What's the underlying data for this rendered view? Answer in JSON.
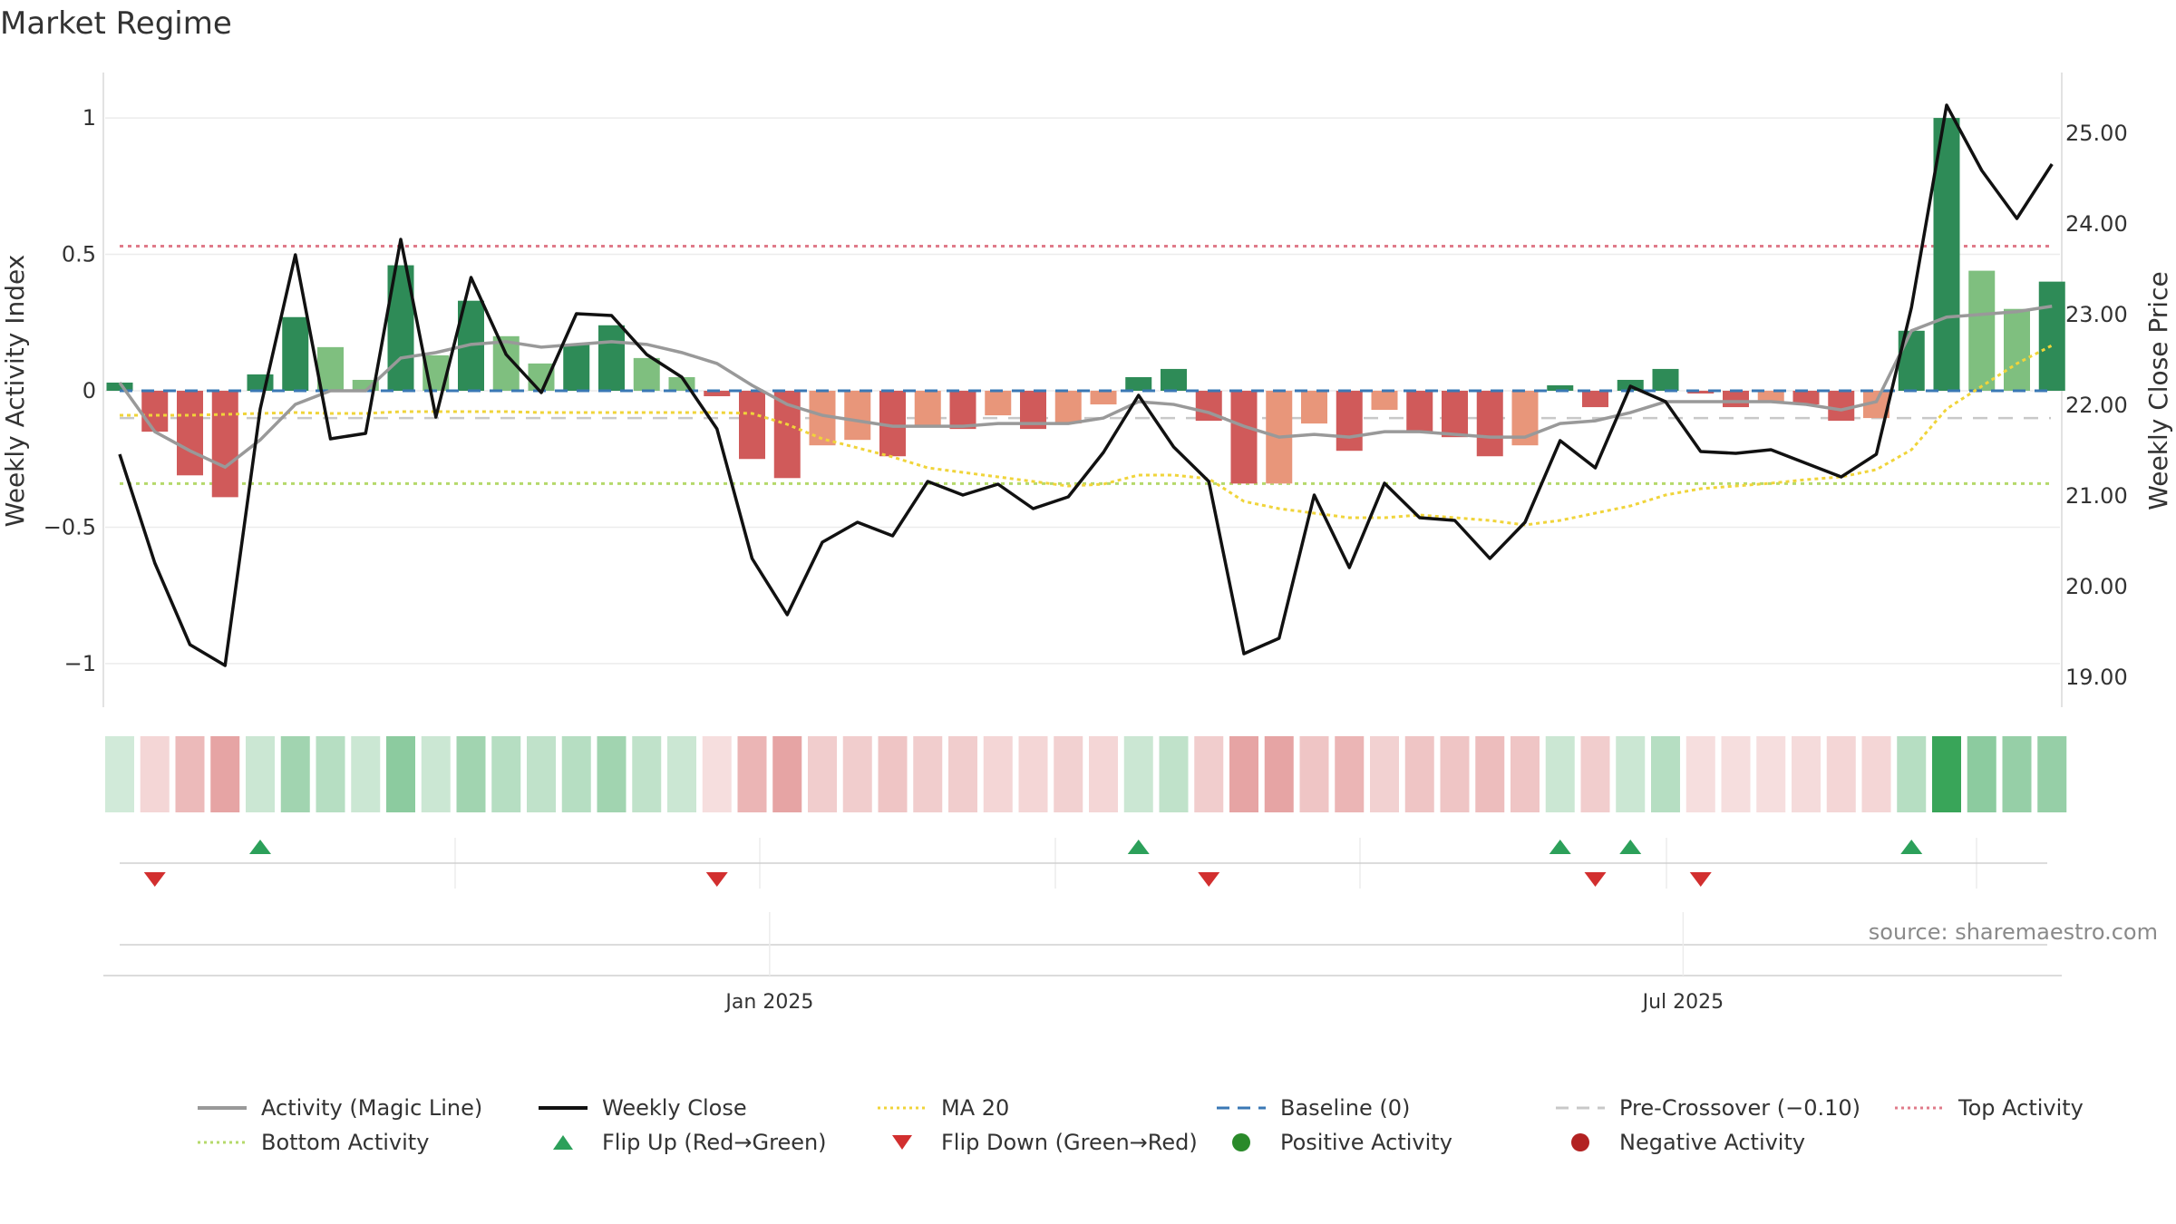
{
  "title": "Market Regime",
  "source": "source: sharemaestro.com",
  "colors": {
    "up_strong": "#2e8b57",
    "up_light": "#7fbf7f",
    "down_strong": "#d05a5a",
    "down_light": "#e8967a",
    "magic_line": "#999999",
    "close": "#111111",
    "ma20": "#f0d43a",
    "baseline": "#3a78b5",
    "pre_crossover": "#c8c8c8",
    "top_activity": "#e07b8a",
    "bottom_activity": "#b5d96b",
    "flip_up": "#2ca05a",
    "flip_down": "#d22f2f"
  },
  "legend": [
    {
      "label": "Activity (Magic Line)",
      "icon": "solid-gray-line"
    },
    {
      "label": "Weekly Close",
      "icon": "solid-black-line"
    },
    {
      "label": "MA 20",
      "icon": "dotted-yellow-line"
    },
    {
      "label": "Baseline (0)",
      "icon": "dashed-blue-line"
    },
    {
      "label": "Pre-Crossover (−0.10)",
      "icon": "dashed-gray-line"
    },
    {
      "label": "Top Activity",
      "icon": "dotted-pink-line"
    },
    {
      "label": "Bottom Activity",
      "icon": "dotted-green-line"
    },
    {
      "label": "Flip Up (Red→Green)",
      "icon": "triangle-up-icon"
    },
    {
      "label": "Flip Down (Green→Red)",
      "icon": "triangle-down-icon"
    },
    {
      "label": "Positive Activity",
      "icon": "green-dot-icon"
    },
    {
      "label": "Negative Activity",
      "icon": "red-dot-icon"
    }
  ],
  "chart_data": {
    "type": "bar",
    "title": "Market Regime",
    "x_tick_labels": [
      "Jan 2025",
      "Jul 2025"
    ],
    "x_tick_index": [
      18.5,
      44.5
    ],
    "left_axis": {
      "label": "Weekly Activity Index",
      "ticks": [
        "1",
        "0.5",
        "0",
        "−0.5",
        "−1"
      ],
      "tick_values": [
        1,
        0.5,
        0,
        -0.5,
        -1
      ],
      "ylim": [
        -1.08,
        1.08
      ]
    },
    "right_axis": {
      "label": "Weekly Close Price",
      "ticks": [
        "25.00",
        "24.00",
        "23.00",
        "22.00",
        "21.00",
        "20.00",
        "19.00"
      ],
      "tick_values": [
        25,
        24,
        23,
        22,
        21,
        20,
        19
      ],
      "ylim": [
        18.9,
        25.4
      ]
    },
    "thresholds": {
      "top_activity": 0.53,
      "bottom_activity": -0.34,
      "pre_crossover": -0.1,
      "baseline": 0
    },
    "activity": [
      0.03,
      -0.15,
      -0.31,
      -0.39,
      0.06,
      0.27,
      0.16,
      0.04,
      0.46,
      0.13,
      0.33,
      0.2,
      0.1,
      0.17,
      0.24,
      0.12,
      0.05,
      -0.02,
      -0.25,
      -0.32,
      -0.2,
      -0.18,
      -0.24,
      -0.13,
      -0.14,
      -0.09,
      -0.14,
      -0.12,
      -0.05,
      0.05,
      0.08,
      -0.11,
      -0.34,
      -0.34,
      -0.12,
      -0.22,
      -0.07,
      -0.15,
      -0.17,
      -0.24,
      -0.2,
      0.02,
      -0.06,
      0.04,
      0.08,
      -0.01,
      -0.06,
      -0.04,
      -0.05,
      -0.11,
      -0.1,
      0.22,
      1.0,
      0.44,
      0.3,
      0.4
    ],
    "bar_color_class": [
      "up_strong",
      "down_strong",
      "down_strong",
      "down_strong",
      "up_strong",
      "up_strong",
      "up_light",
      "up_light",
      "up_strong",
      "up_light",
      "up_strong",
      "up_light",
      "up_light",
      "up_strong",
      "up_strong",
      "up_light",
      "up_light",
      "down_strong",
      "down_strong",
      "down_strong",
      "down_light",
      "down_light",
      "down_strong",
      "down_light",
      "down_strong",
      "down_light",
      "down_strong",
      "down_light",
      "down_light",
      "up_strong",
      "up_strong",
      "down_strong",
      "down_strong",
      "down_light",
      "down_light",
      "down_strong",
      "down_light",
      "down_strong",
      "down_strong",
      "down_strong",
      "down_light",
      "up_strong",
      "down_strong",
      "up_strong",
      "up_strong",
      "down_strong",
      "down_strong",
      "down_light",
      "down_strong",
      "down_strong",
      "down_light",
      "up_strong",
      "up_strong",
      "up_light",
      "up_light",
      "up_strong"
    ],
    "weekly_close": [
      21.45,
      20.25,
      19.35,
      19.12,
      21.95,
      23.65,
      21.62,
      21.68,
      23.82,
      21.86,
      23.4,
      22.55,
      22.13,
      23.0,
      22.98,
      22.55,
      22.3,
      21.73,
      20.3,
      19.68,
      20.48,
      20.7,
      20.55,
      21.15,
      21.0,
      21.12,
      20.85,
      20.98,
      21.47,
      22.1,
      21.53,
      21.15,
      19.25,
      19.42,
      21.0,
      20.2,
      21.13,
      20.75,
      20.72,
      20.3,
      20.7,
      21.6,
      21.3,
      22.2,
      22.03,
      21.48,
      21.46,
      21.5,
      21.35,
      21.2,
      21.45,
      23.07,
      25.3,
      24.58,
      24.05,
      24.65
    ],
    "magic_line": [
      0.03,
      -0.15,
      -0.22,
      -0.28,
      -0.18,
      -0.05,
      0.0,
      0.0,
      0.12,
      0.14,
      0.17,
      0.18,
      0.16,
      0.17,
      0.18,
      0.17,
      0.14,
      0.1,
      0.02,
      -0.05,
      -0.09,
      -0.11,
      -0.13,
      -0.13,
      -0.13,
      -0.12,
      -0.12,
      -0.12,
      -0.1,
      -0.04,
      -0.05,
      -0.08,
      -0.13,
      -0.17,
      -0.16,
      -0.17,
      -0.15,
      -0.15,
      -0.16,
      -0.17,
      -0.17,
      -0.12,
      -0.11,
      -0.08,
      -0.04,
      -0.04,
      -0.04,
      -0.04,
      -0.05,
      -0.07,
      -0.04,
      0.22,
      0.27,
      0.28,
      0.29,
      0.31
    ],
    "ma20": [
      21.88,
      21.88,
      21.88,
      21.89,
      21.9,
      21.91,
      21.9,
      21.9,
      21.92,
      21.92,
      21.92,
      21.92,
      21.91,
      21.91,
      21.91,
      21.91,
      21.91,
      21.91,
      21.9,
      21.78,
      21.62,
      21.52,
      21.42,
      21.3,
      21.25,
      21.2,
      21.15,
      21.1,
      21.12,
      21.22,
      21.22,
      21.18,
      20.93,
      20.85,
      20.8,
      20.75,
      20.75,
      20.78,
      20.75,
      20.72,
      20.67,
      20.72,
      20.8,
      20.88,
      21.0,
      21.07,
      21.1,
      21.13,
      21.17,
      21.2,
      21.28,
      21.5,
      21.95,
      22.2,
      22.45,
      22.65
    ],
    "regime_strip_level": [
      0.22,
      0.25,
      0.42,
      0.55,
      0.25,
      0.45,
      0.35,
      0.25,
      0.55,
      0.25,
      0.45,
      0.35,
      0.3,
      0.35,
      0.45,
      0.3,
      0.25,
      0.2,
      0.45,
      0.55,
      0.3,
      0.3,
      0.35,
      0.3,
      0.3,
      0.25,
      0.25,
      0.28,
      0.25,
      0.25,
      0.3,
      0.3,
      0.55,
      0.55,
      0.35,
      0.45,
      0.28,
      0.35,
      0.35,
      0.4,
      0.35,
      0.25,
      0.3,
      0.25,
      0.35,
      0.2,
      0.2,
      0.2,
      0.22,
      0.25,
      0.25,
      0.35,
      0.95,
      0.55,
      0.5,
      0.5
    ],
    "flip_up_index": [
      4,
      29,
      41,
      43,
      51
    ],
    "flip_down_index": [
      1,
      17,
      31,
      42,
      45
    ]
  }
}
